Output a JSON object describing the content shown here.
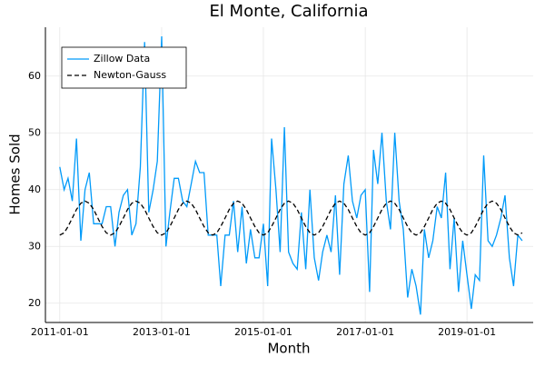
{
  "chart_data": {
    "type": "line",
    "title": "El Monte, California",
    "x_label": "Month",
    "y_label": "Homes Sold",
    "x": [
      "2011-01-01",
      "2011-02-01",
      "2011-03-01",
      "2011-04-01",
      "2011-05-01",
      "2011-06-01",
      "2011-07-01",
      "2011-08-01",
      "2011-09-01",
      "2011-10-01",
      "2011-11-01",
      "2011-12-01",
      "2012-01-01",
      "2012-02-01",
      "2012-03-01",
      "2012-04-01",
      "2012-05-01",
      "2012-06-01",
      "2012-07-01",
      "2012-08-01",
      "2012-09-01",
      "2012-10-01",
      "2012-11-01",
      "2012-12-01",
      "2013-01-01",
      "2013-02-01",
      "2013-03-01",
      "2013-04-01",
      "2013-05-01",
      "2013-06-01",
      "2013-07-01",
      "2013-08-01",
      "2013-09-01",
      "2013-10-01",
      "2013-11-01",
      "2013-12-01",
      "2014-01-01",
      "2014-02-01",
      "2014-03-01",
      "2014-04-01",
      "2014-05-01",
      "2014-06-01",
      "2014-07-01",
      "2014-08-01",
      "2014-09-01",
      "2014-10-01",
      "2014-11-01",
      "2014-12-01",
      "2015-01-01",
      "2015-02-01",
      "2015-03-01",
      "2015-04-01",
      "2015-05-01",
      "2015-06-01",
      "2015-07-01",
      "2015-08-01",
      "2015-09-01",
      "2015-10-01",
      "2015-11-01",
      "2015-12-01",
      "2016-01-01",
      "2016-02-01",
      "2016-03-01",
      "2016-04-01",
      "2016-05-01",
      "2016-06-01",
      "2016-07-01",
      "2016-08-01",
      "2016-09-01",
      "2016-10-01",
      "2016-11-01",
      "2016-12-01",
      "2017-01-01",
      "2017-02-01",
      "2017-03-01",
      "2017-04-01",
      "2017-05-01",
      "2017-06-01",
      "2017-07-01",
      "2017-08-01",
      "2017-09-01",
      "2017-10-01",
      "2017-11-01",
      "2017-12-01",
      "2018-01-01",
      "2018-02-01",
      "2018-03-01",
      "2018-04-01",
      "2018-05-01",
      "2018-06-01",
      "2018-07-01",
      "2018-08-01",
      "2018-09-01",
      "2018-10-01",
      "2018-11-01",
      "2018-12-01",
      "2019-01-01",
      "2019-02-01",
      "2019-03-01",
      "2019-04-01",
      "2019-05-01",
      "2019-06-01",
      "2019-07-01",
      "2019-08-01",
      "2019-09-01",
      "2019-10-01",
      "2019-11-01",
      "2019-12-01",
      "2020-01-01",
      "2020-02-01"
    ],
    "series": [
      {
        "name": "Zillow Data",
        "color": "#009af9",
        "dash": false,
        "values": [
          44,
          40,
          42,
          38,
          49,
          31,
          40,
          43,
          34,
          34,
          34,
          37,
          37,
          30,
          36,
          39,
          40,
          32,
          34,
          44,
          66,
          36,
          40,
          45,
          67,
          30,
          36,
          42,
          42,
          38,
          37,
          41,
          45,
          43,
          43,
          32,
          32,
          32,
          23,
          32,
          32,
          38,
          29,
          37,
          27,
          33,
          28,
          28,
          34,
          23,
          49,
          40,
          29,
          51,
          29,
          27,
          26,
          36,
          26,
          40,
          28,
          24,
          29,
          32,
          29,
          39,
          25,
          41,
          46,
          38,
          35,
          39,
          40,
          22,
          47,
          41,
          50,
          38,
          33,
          50,
          38,
          33,
          21,
          26,
          23,
          18,
          33,
          28,
          31,
          37,
          35,
          43,
          26,
          35,
          22,
          31,
          25,
          19,
          25,
          24,
          46,
          31,
          30,
          32,
          35,
          39,
          28,
          23,
          32,
          31
        ]
      },
      {
        "name": "Newton-Gauss",
        "color": "#000000",
        "dash": true,
        "values": [
          32,
          32.4,
          33.5,
          35,
          36.5,
          37.6,
          38,
          37.6,
          36.5,
          35,
          33.5,
          32.4,
          32,
          32.4,
          33.5,
          35,
          36.5,
          37.6,
          38,
          37.6,
          36.5,
          35,
          33.5,
          32.4,
          32,
          32.4,
          33.5,
          35,
          36.5,
          37.6,
          38,
          37.6,
          36.5,
          35,
          33.5,
          32.4,
          32,
          32.4,
          33.5,
          35,
          36.5,
          37.6,
          38,
          37.6,
          36.5,
          35,
          33.5,
          32.4,
          32,
          32.4,
          33.5,
          35,
          36.5,
          37.6,
          38,
          37.6,
          36.5,
          35,
          33.5,
          32.4,
          32,
          32.4,
          33.5,
          35,
          36.5,
          37.6,
          38,
          37.6,
          36.5,
          35,
          33.5,
          32.4,
          32,
          32.4,
          33.5,
          35,
          36.5,
          37.6,
          38,
          37.6,
          36.5,
          35,
          33.5,
          32.4,
          32,
          32.4,
          33.5,
          35,
          36.5,
          37.6,
          38,
          37.6,
          36.5,
          35,
          33.5,
          32.4,
          32,
          32.4,
          33.5,
          35,
          36.5,
          37.6,
          38,
          37.6,
          36.5,
          35,
          33.5,
          32.4,
          32,
          32.4
        ]
      }
    ],
    "xlim": [
      "2010-09-20",
      "2020-04-20"
    ],
    "xticks": [
      "2011-01-01",
      "2013-01-01",
      "2015-01-01",
      "2017-01-01",
      "2019-01-01"
    ],
    "ylim": [
      16.6,
      68.6
    ],
    "yticks": [
      20,
      30,
      40,
      50,
      60
    ],
    "grid": true,
    "legend": "top-left"
  }
}
